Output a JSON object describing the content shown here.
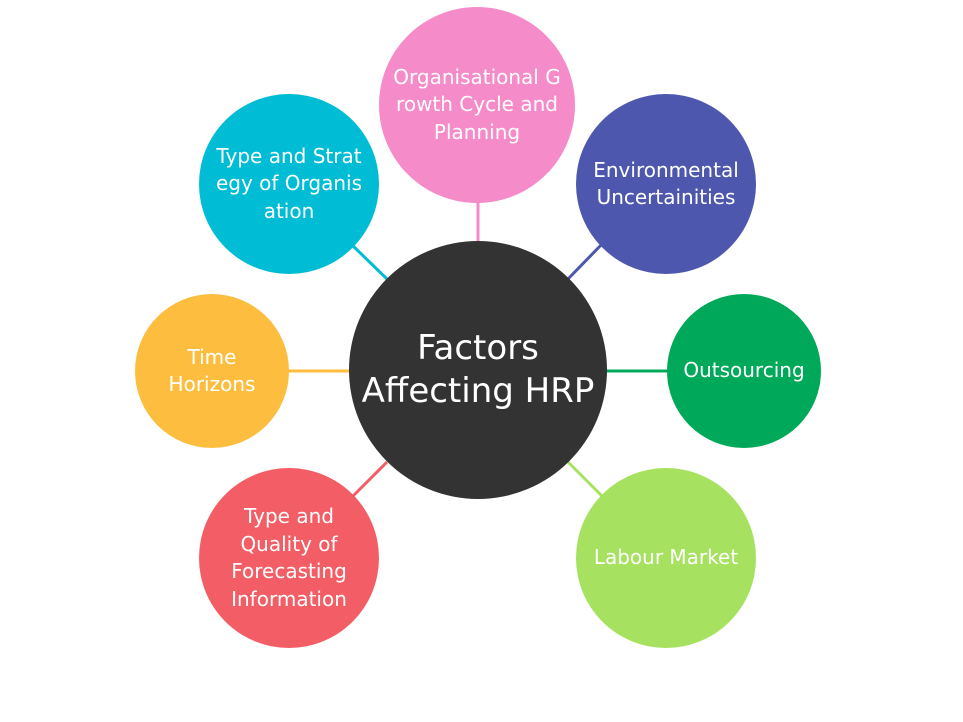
{
  "center": {
    "label": "Factors Affecting HRP",
    "color": "#333333"
  },
  "factors": [
    {
      "label": "Organisational Growth Cycle and Planning",
      "color": "#f58bc9"
    },
    {
      "label": "Type and Strategy of Organisation",
      "color": "#00bcd4"
    },
    {
      "label": "Environmental Uncertainities",
      "color": "#4d57ae"
    },
    {
      "label": "Time Horizons",
      "color": "#fdbe3f"
    },
    {
      "label": "Outsourcing",
      "color": "#00a95a"
    },
    {
      "label": "Type and Quality of Forecasting Information",
      "color": "#f35e66"
    },
    {
      "label": "Labour Market",
      "color": "#a6e25f"
    }
  ]
}
